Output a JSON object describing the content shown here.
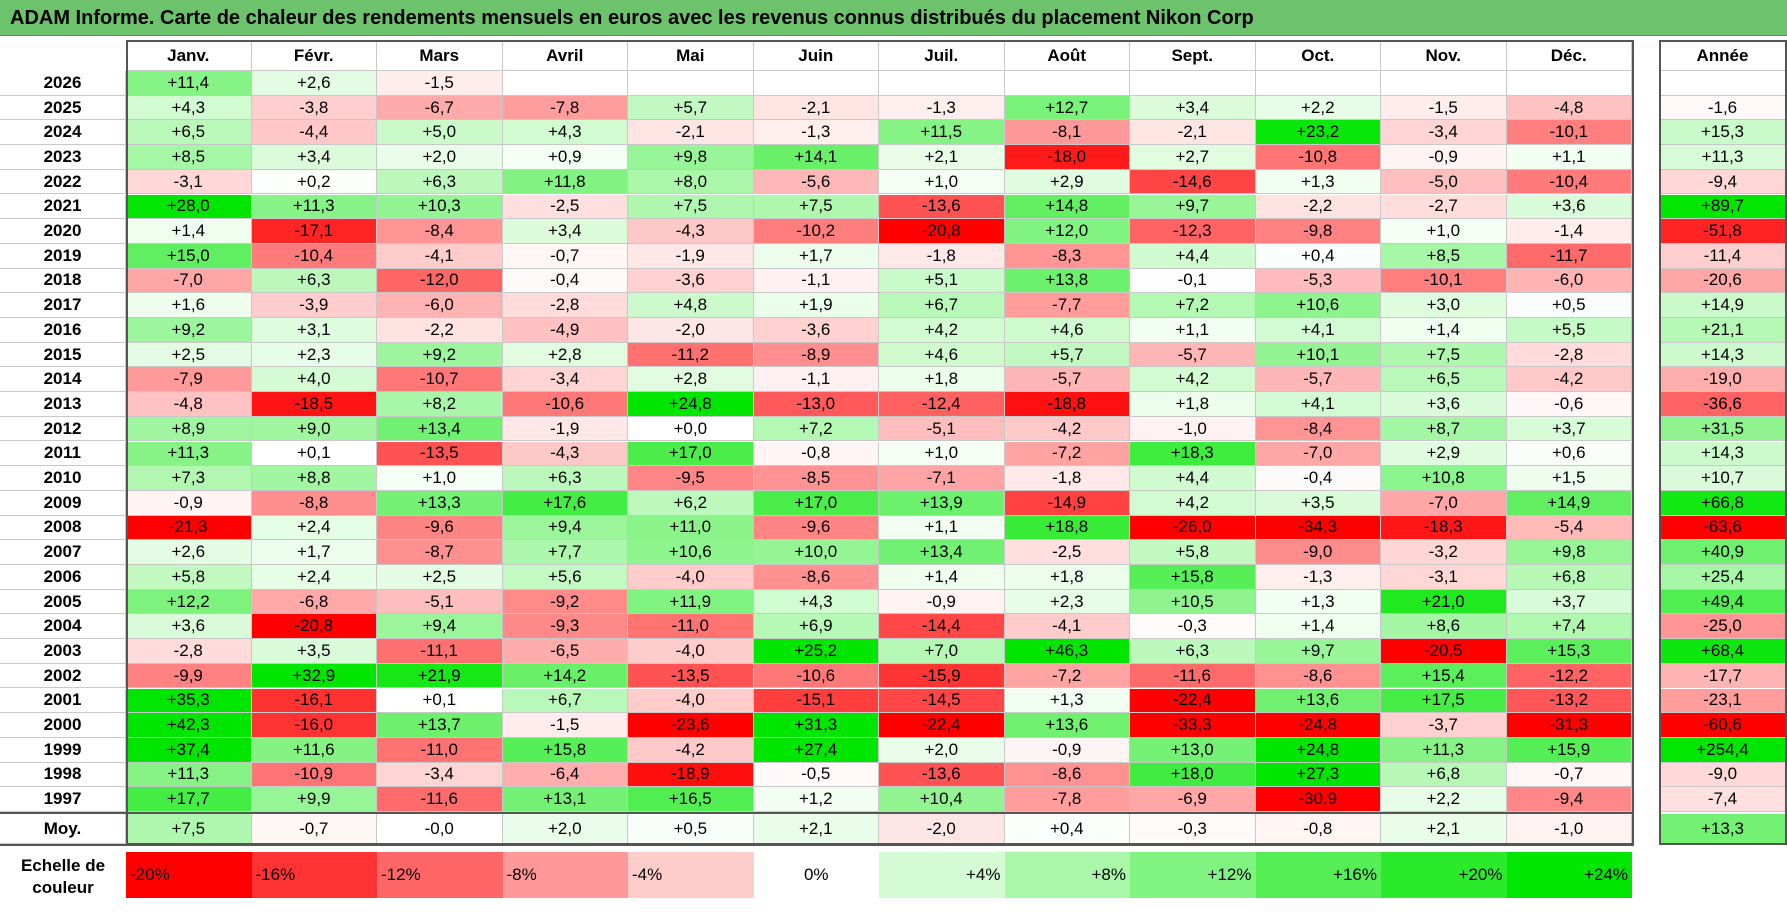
{
  "title": "ADAM Informe. Carte de chaleur des rendements mensuels en euros avec les revenus connus distribués du placement Nikon Corp",
  "chart_data": {
    "type": "heatmap",
    "title": "ADAM Informe. Carte de chaleur des rendements mensuels en euros avec les revenus connus distribués du placement Nikon Corp",
    "columns": [
      "Janv.",
      "Févr.",
      "Mars",
      "Avril",
      "Mai",
      "Juin",
      "Juil.",
      "Août",
      "Sept.",
      "Oct.",
      "Nov.",
      "Déc."
    ],
    "annual_header": "Année",
    "rows": [
      {
        "year": "2026",
        "values": [
          "+11,4",
          "+2,6",
          "-1,5",
          "",
          "",
          "",
          "",
          "",
          "",
          "",
          "",
          ""
        ],
        "annual": ""
      },
      {
        "year": "2025",
        "values": [
          "+4,3",
          "-3,8",
          "-6,7",
          "-7,8",
          "+5,7",
          "-2,1",
          "-1,3",
          "+12,7",
          "+3,4",
          "+2,2",
          "-1,5",
          "-4,8"
        ],
        "annual": "-1,6"
      },
      {
        "year": "2024",
        "values": [
          "+6,5",
          "-4,4",
          "+5,0",
          "+4,3",
          "-2,1",
          "-1,3",
          "+11,5",
          "-8,1",
          "-2,1",
          "+23,2",
          "-3,4",
          "-10,1"
        ],
        "annual": "+15,3"
      },
      {
        "year": "2023",
        "values": [
          "+8,5",
          "+3,4",
          "+2,0",
          "+0,9",
          "+9,8",
          "+14,1",
          "+2,1",
          "-18,0",
          "+2,7",
          "-10,8",
          "-0,9",
          "+1,1"
        ],
        "annual": "+11,3"
      },
      {
        "year": "2022",
        "values": [
          "-3,1",
          "+0,2",
          "+6,3",
          "+11,8",
          "+8,0",
          "-5,6",
          "+1,0",
          "+2,9",
          "-14,6",
          "+1,3",
          "-5,0",
          "-10,4"
        ],
        "annual": "-9,4"
      },
      {
        "year": "2021",
        "values": [
          "+28,0",
          "+11,3",
          "+10,3",
          "-2,5",
          "+7,5",
          "+7,5",
          "-13,6",
          "+14,8",
          "+9,7",
          "-2,2",
          "-2,7",
          "+3,6"
        ],
        "annual": "+89,7"
      },
      {
        "year": "2020",
        "values": [
          "+1,4",
          "-17,1",
          "-8,4",
          "+3,4",
          "-4,3",
          "-10,2",
          "-20,8",
          "+12,0",
          "-12,3",
          "-9,8",
          "+1,0",
          "-1,4"
        ],
        "annual": "-51,8"
      },
      {
        "year": "2019",
        "values": [
          "+15,0",
          "-10,4",
          "-4,1",
          "-0,7",
          "-1,9",
          "+1,7",
          "-1,8",
          "-8,3",
          "+4,4",
          "+0,4",
          "+8,5",
          "-11,7"
        ],
        "annual": "-11,4"
      },
      {
        "year": "2018",
        "values": [
          "-7,0",
          "+6,3",
          "-12,0",
          "-0,4",
          "-3,6",
          "-1,1",
          "+5,1",
          "+13,8",
          "-0,1",
          "-5,3",
          "-10,1",
          "-6,0"
        ],
        "annual": "-20,6"
      },
      {
        "year": "2017",
        "values": [
          "+1,6",
          "-3,9",
          "-6,0",
          "-2,8",
          "+4,8",
          "+1,9",
          "+6,7",
          "-7,7",
          "+7,2",
          "+10,6",
          "+3,0",
          "+0,5"
        ],
        "annual": "+14,9"
      },
      {
        "year": "2016",
        "values": [
          "+9,2",
          "+3,1",
          "-2,2",
          "-4,9",
          "-2,0",
          "-3,6",
          "+4,2",
          "+4,6",
          "+1,1",
          "+4,1",
          "+1,4",
          "+5,5"
        ],
        "annual": "+21,1"
      },
      {
        "year": "2015",
        "values": [
          "+2,5",
          "+2,3",
          "+9,2",
          "+2,8",
          "-11,2",
          "-8,9",
          "+4,6",
          "+5,7",
          "-5,7",
          "+10,1",
          "+7,5",
          "-2,8"
        ],
        "annual": "+14,3"
      },
      {
        "year": "2014",
        "values": [
          "-7,9",
          "+4,0",
          "-10,7",
          "-3,4",
          "+2,8",
          "-1,1",
          "+1,8",
          "-5,7",
          "+4,2",
          "-5,7",
          "+6,5",
          "-4,2"
        ],
        "annual": "-19,0"
      },
      {
        "year": "2013",
        "values": [
          "-4,8",
          "-18,5",
          "+8,2",
          "-10,6",
          "+24,8",
          "-13,0",
          "-12,4",
          "-18,8",
          "+1,8",
          "+4,1",
          "+3,6",
          "-0,6"
        ],
        "annual": "-36,6"
      },
      {
        "year": "2012",
        "values": [
          "+8,9",
          "+9,0",
          "+13,4",
          "-1,9",
          "+0,0",
          "+7,2",
          "-5,1",
          "-4,2",
          "-1,0",
          "-8,4",
          "+8,7",
          "+3,7"
        ],
        "annual": "+31,5"
      },
      {
        "year": "2011",
        "values": [
          "+11,3",
          "+0,1",
          "-13,5",
          "-4,3",
          "+17,0",
          "-0,8",
          "+1,0",
          "-7,2",
          "+18,3",
          "-7,0",
          "+2,9",
          "+0,6"
        ],
        "annual": "+14,3"
      },
      {
        "year": "2010",
        "values": [
          "+7,3",
          "+8,8",
          "+1,0",
          "+6,3",
          "-9,5",
          "-8,5",
          "-7,1",
          "-1,8",
          "+4,4",
          "-0,4",
          "+10,8",
          "+1,5"
        ],
        "annual": "+10,7"
      },
      {
        "year": "2009",
        "values": [
          "-0,9",
          "-8,8",
          "+13,3",
          "+17,6",
          "+6,2",
          "+17,0",
          "+13,9",
          "-14,9",
          "+4,2",
          "+3,5",
          "-7,0",
          "+14,9"
        ],
        "annual": "+66,8"
      },
      {
        "year": "2008",
        "values": [
          "-21,3",
          "+2,4",
          "-9,6",
          "+9,4",
          "+11,0",
          "-9,6",
          "+1,1",
          "+18,8",
          "-26,0",
          "-34,3",
          "-18,3",
          "-5,4"
        ],
        "annual": "-63,6"
      },
      {
        "year": "2007",
        "values": [
          "+2,6",
          "+1,7",
          "-8,7",
          "+7,7",
          "+10,6",
          "+10,0",
          "+13,4",
          "-2,5",
          "+5,8",
          "-9,0",
          "-3,2",
          "+9,8"
        ],
        "annual": "+40,9"
      },
      {
        "year": "2006",
        "values": [
          "+5,8",
          "+2,4",
          "+2,5",
          "+5,6",
          "-4,0",
          "-8,6",
          "+1,4",
          "+1,8",
          "+15,8",
          "-1,3",
          "-3,1",
          "+6,8"
        ],
        "annual": "+25,4"
      },
      {
        "year": "2005",
        "values": [
          "+12,2",
          "-6,8",
          "-5,1",
          "-9,2",
          "+11,9",
          "+4,3",
          "-0,9",
          "+2,3",
          "+10,5",
          "+1,3",
          "+21,0",
          "+3,7"
        ],
        "annual": "+49,4"
      },
      {
        "year": "2004",
        "values": [
          "+3,6",
          "-20,8",
          "+9,4",
          "-9,3",
          "-11,0",
          "+6,9",
          "-14,4",
          "-4,1",
          "-0,3",
          "+1,4",
          "+8,6",
          "+7,4"
        ],
        "annual": "-25,0"
      },
      {
        "year": "2003",
        "values": [
          "-2,8",
          "+3,5",
          "-11,1",
          "-6,5",
          "-4,0",
          "+25,2",
          "+7,0",
          "+46,3",
          "+6,3",
          "+9,7",
          "-20,5",
          "+15,3"
        ],
        "annual": "+68,4"
      },
      {
        "year": "2002",
        "values": [
          "-9,9",
          "+32,9",
          "+21,9",
          "+14,2",
          "-13,5",
          "-10,6",
          "-15,9",
          "-7,2",
          "-11,6",
          "-8,6",
          "+15,4",
          "-12,2"
        ],
        "annual": "-17,7"
      },
      {
        "year": "2001",
        "values": [
          "+35,3",
          "-16,1",
          "+0,1",
          "+6,7",
          "-4,0",
          "-15,1",
          "-14,5",
          "+1,3",
          "-22,4",
          "+13,6",
          "+17,5",
          "-13,2"
        ],
        "annual": "-23,1"
      },
      {
        "year": "2000",
        "values": [
          "+42,3",
          "-16,0",
          "+13,7",
          "-1,5",
          "-23,6",
          "+31,3",
          "-22,4",
          "+13,6",
          "-33,3",
          "-24,8",
          "-3,7",
          "-31,3"
        ],
        "annual": "-60,6"
      },
      {
        "year": "1999",
        "values": [
          "+37,4",
          "+11,6",
          "-11,0",
          "+15,8",
          "-4,2",
          "+27,4",
          "+2,0",
          "-0,9",
          "+13,0",
          "+24,8",
          "+11,3",
          "+15,9"
        ],
        "annual": "+254,4"
      },
      {
        "year": "1998",
        "values": [
          "+11,3",
          "-10,9",
          "-3,4",
          "-6,4",
          "-18,9",
          "-0,5",
          "-13,6",
          "-8,6",
          "+18,0",
          "+27,3",
          "+6,8",
          "-0,7"
        ],
        "annual": "-9,0"
      },
      {
        "year": "1997",
        "values": [
          "+17,7",
          "+9,9",
          "-11,6",
          "+13,1",
          "+16,5",
          "+1,2",
          "+10,4",
          "-7,8",
          "-6,9",
          "-30,9",
          "+2,2",
          "-9,4"
        ],
        "annual": "-7,4"
      }
    ],
    "average": {
      "label": "Moy.",
      "values": [
        "+7,5",
        "-0,7",
        "-0,0",
        "+2,0",
        "+0,5",
        "+2,1",
        "-2,0",
        "+0,4",
        "-0,3",
        "-0,8",
        "+2,1",
        "-1,0"
      ],
      "annual": "+13,3"
    },
    "legend": {
      "label": "Echelle de couleur",
      "steps": [
        {
          "text": "-20%",
          "value": -20
        },
        {
          "text": "-16%",
          "value": -16
        },
        {
          "text": "-12%",
          "value": -12
        },
        {
          "text": "-8%",
          "value": -8
        },
        {
          "text": "-4%",
          "value": -4
        },
        {
          "text": "0%",
          "value": 0
        },
        {
          "text": "+4%",
          "value": 4
        },
        {
          "text": "+8%",
          "value": 8
        },
        {
          "text": "+12%",
          "value": 12
        },
        {
          "text": "+16%",
          "value": 16
        },
        {
          "text": "+20%",
          "value": 20
        },
        {
          "text": "+24%",
          "value": 24
        }
      ]
    },
    "colors": {
      "negative_max": "#ff0000",
      "positive_max": "#00e600",
      "neutral": "#ffffff"
    }
  }
}
